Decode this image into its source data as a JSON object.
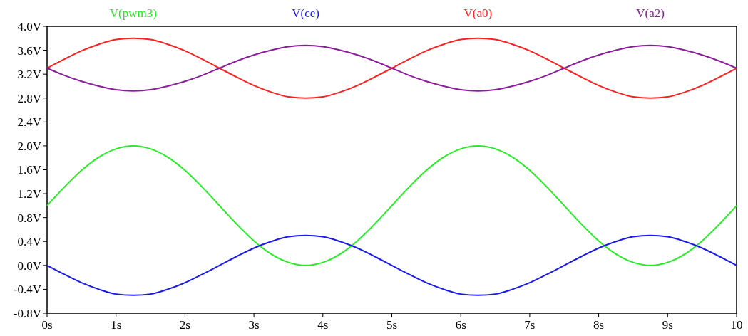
{
  "chart_data": {
    "type": "line",
    "legend": "top",
    "marker": "none",
    "line_style": "solid",
    "grid": false,
    "x": [
      0,
      0.25,
      0.5,
      0.75,
      1,
      1.25,
      1.5,
      1.75,
      2,
      2.25,
      2.5,
      2.75,
      3,
      3.25,
      3.5,
      3.75,
      4,
      4.25,
      4.5,
      4.75,
      5,
      5.25,
      5.5,
      5.75,
      6,
      6.25,
      6.5,
      6.75,
      7,
      7.25,
      7.5,
      7.75,
      8,
      8.25,
      8.5,
      8.75,
      9,
      9.25,
      9.5,
      9.75,
      10
    ],
    "xlim": [
      0,
      10
    ],
    "xticks": [
      {
        "value": 0,
        "label": "0s"
      },
      {
        "value": 1,
        "label": "1s"
      },
      {
        "value": 2,
        "label": "2s"
      },
      {
        "value": 3,
        "label": "3s"
      },
      {
        "value": 4,
        "label": "4s"
      },
      {
        "value": 5,
        "label": "5s"
      },
      {
        "value": 6,
        "label": "6s"
      },
      {
        "value": 7,
        "label": "7s"
      },
      {
        "value": 8,
        "label": "8s"
      },
      {
        "value": 9,
        "label": "9s"
      },
      {
        "value": 10,
        "label": "10"
      }
    ],
    "ylim": [
      -0.8,
      4.0
    ],
    "yticks": [
      {
        "value": -0.8,
        "label": "-0.8V"
      },
      {
        "value": -0.4,
        "label": "-0.4V"
      },
      {
        "value": 0,
        "label": "0.0V"
      },
      {
        "value": 0.4,
        "label": "0.4V"
      },
      {
        "value": 0.8,
        "label": "0.8V"
      },
      {
        "value": 1.2,
        "label": "1.2V"
      },
      {
        "value": 1.6,
        "label": "1.6V"
      },
      {
        "value": 2.0,
        "label": "2.0V"
      },
      {
        "value": 2.4,
        "label": "2.4V"
      },
      {
        "value": 2.8,
        "label": "2.8V"
      },
      {
        "value": 3.2,
        "label": "3.2V"
      },
      {
        "value": 3.6,
        "label": "3.6V"
      },
      {
        "value": 4.0,
        "label": "4.0V"
      }
    ],
    "series": [
      {
        "name": "V(pwm3)",
        "color": "#22ee22",
        "values": [
          1,
          1.31,
          1.59,
          1.81,
          1.95,
          2,
          1.95,
          1.81,
          1.59,
          1.31,
          1,
          0.69,
          0.41,
          0.19,
          0.05,
          0,
          0.05,
          0.19,
          0.41,
          0.69,
          1,
          1.31,
          1.59,
          1.81,
          1.95,
          2,
          1.95,
          1.81,
          1.59,
          1.31,
          1,
          0.69,
          0.41,
          0.19,
          0.05,
          0,
          0.05,
          0.19,
          0.41,
          0.69,
          1
        ]
      },
      {
        "name": "V(ce)",
        "color": "#1a1aee",
        "values": [
          0,
          -0.15,
          -0.29,
          -0.4,
          -0.48,
          -0.5,
          -0.48,
          -0.4,
          -0.29,
          -0.15,
          0,
          0.15,
          0.29,
          0.4,
          0.48,
          0.5,
          0.48,
          0.4,
          0.29,
          0.15,
          0,
          -0.15,
          -0.29,
          -0.4,
          -0.48,
          -0.5,
          -0.48,
          -0.4,
          -0.29,
          -0.15,
          0,
          0.15,
          0.29,
          0.4,
          0.48,
          0.5,
          0.48,
          0.4,
          0.29,
          0.15,
          0
        ]
      },
      {
        "name": "V(a0)",
        "color": "#ff2020",
        "values": [
          3.3,
          3.45,
          3.59,
          3.7,
          3.78,
          3.8,
          3.78,
          3.7,
          3.59,
          3.45,
          3.3,
          3.15,
          3.01,
          2.9,
          2.82,
          2.8,
          2.82,
          2.9,
          3.01,
          3.15,
          3.3,
          3.45,
          3.59,
          3.7,
          3.78,
          3.8,
          3.78,
          3.7,
          3.59,
          3.45,
          3.3,
          3.15,
          3.01,
          2.9,
          2.82,
          2.8,
          2.82,
          2.9,
          3.01,
          3.15,
          3.3
        ]
      },
      {
        "name": "V(a2)",
        "color": "#8a1e9a",
        "values": [
          3.3,
          3.18,
          3.08,
          3,
          2.94,
          2.92,
          2.94,
          3,
          3.08,
          3.18,
          3.3,
          3.42,
          3.52,
          3.6,
          3.66,
          3.68,
          3.66,
          3.6,
          3.52,
          3.42,
          3.3,
          3.18,
          3.08,
          3,
          2.94,
          2.92,
          2.94,
          3,
          3.08,
          3.18,
          3.3,
          3.42,
          3.52,
          3.6,
          3.66,
          3.68,
          3.66,
          3.6,
          3.52,
          3.42,
          3.3
        ]
      }
    ]
  }
}
